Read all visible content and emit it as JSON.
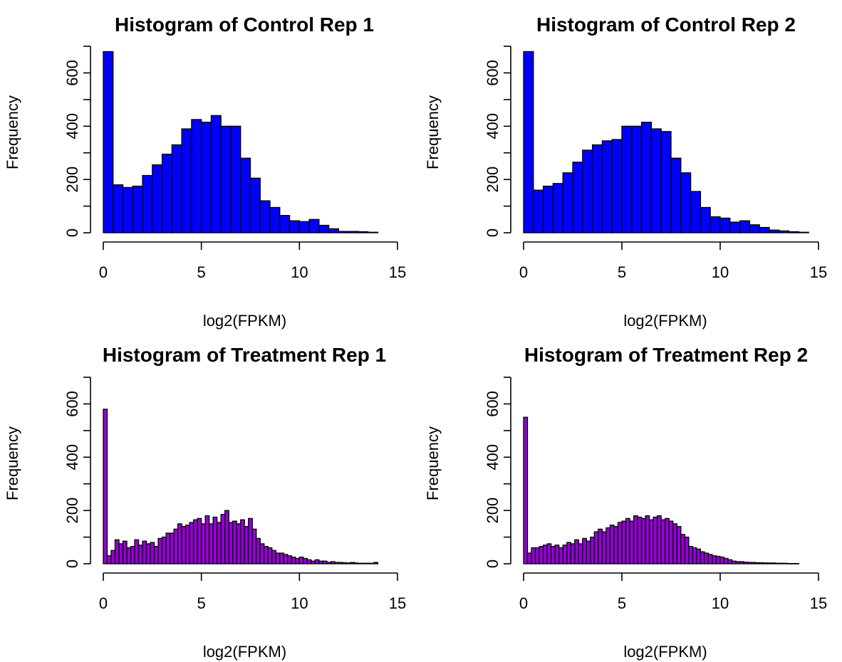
{
  "chart_data": [
    {
      "type": "bar",
      "title": "Histogram of Control Rep 1",
      "xlabel": "log2(FPKM)",
      "ylabel": "Frequency",
      "xlim": [
        0,
        15
      ],
      "ylim": [
        0,
        700
      ],
      "xticks": [
        0,
        5,
        10,
        15
      ],
      "yticks": [
        0,
        200,
        400,
        600
      ],
      "yticks_minor": [
        100,
        300,
        500,
        700
      ],
      "bin_width": 0.5,
      "bin_start": 0,
      "bar_color": "#0000ff",
      "values": [
        680,
        180,
        170,
        175,
        215,
        255,
        295,
        330,
        390,
        425,
        415,
        440,
        400,
        400,
        280,
        205,
        120,
        95,
        65,
        45,
        42,
        50,
        28,
        15,
        5,
        5,
        4,
        2
      ]
    },
    {
      "type": "bar",
      "title": "Histogram of Control Rep 2",
      "xlabel": "log2(FPKM)",
      "ylabel": "Frequency",
      "xlim": [
        0,
        15
      ],
      "ylim": [
        0,
        700
      ],
      "xticks": [
        0,
        5,
        10,
        15
      ],
      "yticks": [
        0,
        200,
        400,
        600
      ],
      "yticks_minor": [
        100,
        300,
        500,
        700
      ],
      "bin_width": 0.5,
      "bin_start": 0,
      "bar_color": "#0000ff",
      "values": [
        680,
        160,
        175,
        185,
        225,
        265,
        310,
        330,
        345,
        350,
        400,
        400,
        415,
        390,
        380,
        280,
        225,
        155,
        95,
        60,
        55,
        40,
        45,
        30,
        20,
        10,
        7,
        4,
        2
      ]
    },
    {
      "type": "bar",
      "title": "Histogram of Treatment Rep 1",
      "xlabel": "log2(FPKM)",
      "ylabel": "Frequency",
      "xlim": [
        0,
        15
      ],
      "ylim": [
        0,
        700
      ],
      "xticks": [
        0,
        5,
        10,
        15
      ],
      "yticks": [
        0,
        200,
        400,
        600
      ],
      "yticks_minor": [
        100,
        300,
        500,
        700
      ],
      "bin_width": 0.2,
      "bin_start": 0,
      "bar_color": "#9400d3",
      "values": [
        580,
        30,
        50,
        90,
        75,
        85,
        60,
        65,
        90,
        70,
        85,
        75,
        80,
        65,
        95,
        100,
        115,
        115,
        130,
        150,
        140,
        145,
        155,
        165,
        170,
        150,
        180,
        150,
        175,
        155,
        185,
        200,
        155,
        160,
        150,
        165,
        140,
        170,
        130,
        95,
        75,
        65,
        60,
        50,
        40,
        40,
        35,
        30,
        25,
        20,
        25,
        20,
        15,
        10,
        15,
        10,
        10,
        5,
        8,
        5,
        5,
        4,
        3,
        5,
        3,
        2,
        2,
        2,
        2,
        5
      ]
    },
    {
      "type": "bar",
      "title": "Histogram of Treatment Rep 2",
      "xlabel": "log2(FPKM)",
      "ylabel": "Frequency",
      "xlim": [
        0,
        15
      ],
      "ylim": [
        0,
        700
      ],
      "xticks": [
        0,
        5,
        10,
        15
      ],
      "yticks": [
        0,
        200,
        400,
        600
      ],
      "yticks_minor": [
        100,
        300,
        500,
        700
      ],
      "bin_width": 0.2,
      "bin_start": 0,
      "bar_color": "#9400d3",
      "values": [
        550,
        40,
        60,
        60,
        65,
        70,
        75,
        65,
        70,
        60,
        70,
        80,
        75,
        90,
        75,
        95,
        85,
        100,
        120,
        130,
        120,
        135,
        145,
        140,
        155,
        160,
        170,
        160,
        180,
        175,
        170,
        180,
        165,
        175,
        180,
        165,
        170,
        160,
        150,
        140,
        110,
        100,
        65,
        60,
        55,
        45,
        40,
        35,
        30,
        28,
        25,
        20,
        15,
        10,
        8,
        8,
        6,
        5,
        5,
        4,
        4,
        3,
        3,
        3,
        2,
        2,
        2,
        1,
        1,
        1
      ]
    }
  ]
}
